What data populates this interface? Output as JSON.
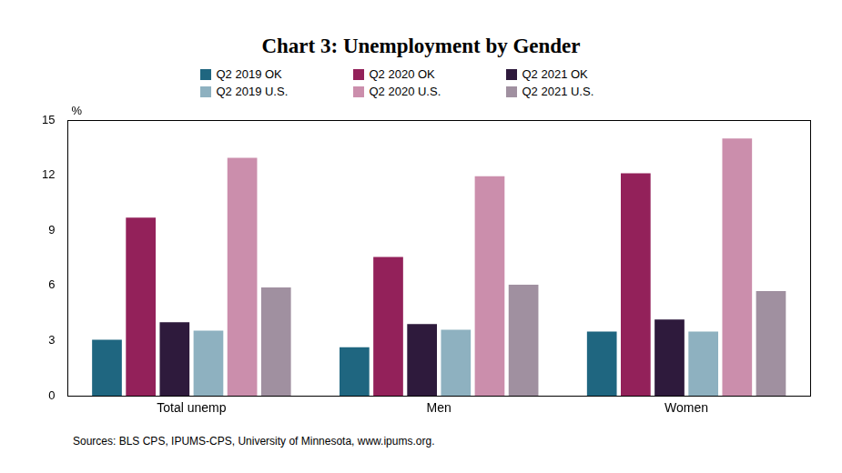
{
  "chart_data": {
    "type": "bar",
    "title": "Chart 3: Unemployment by Gender",
    "y_label": "%",
    "note": "Sources: BLS CPS, IPUMS-CPS, University of Minnesota, www.ipums.org.",
    "categories": [
      "Total unemp",
      "Men",
      "Women"
    ],
    "series": [
      {
        "name": "Q2 2019 OK",
        "color": "#1f6680",
        "values": [
          3.05,
          2.65,
          3.5
        ]
      },
      {
        "name": "Q2 2020 OK",
        "color": "#93215a",
        "values": [
          9.7,
          7.55,
          12.1
        ]
      },
      {
        "name": "Q2 2021 OK",
        "color": "#2e1a3c",
        "values": [
          4.0,
          3.9,
          4.15
        ]
      },
      {
        "name": "Q2 2019 U.S.",
        "color": "#8eb1c0",
        "values": [
          3.55,
          3.6,
          3.5
        ]
      },
      {
        "name": "Q2 2020 U.S.",
        "color": "#cb8eac",
        "values": [
          12.95,
          11.95,
          14.0
        ]
      },
      {
        "name": "Q2 2021 U.S.",
        "color": "#a090a0",
        "values": [
          5.9,
          6.05,
          5.7
        ]
      }
    ],
    "ylim": [
      0,
      15
    ],
    "yticks": [
      0,
      3,
      6,
      9,
      12,
      15
    ],
    "grid": false,
    "legend": "top"
  }
}
